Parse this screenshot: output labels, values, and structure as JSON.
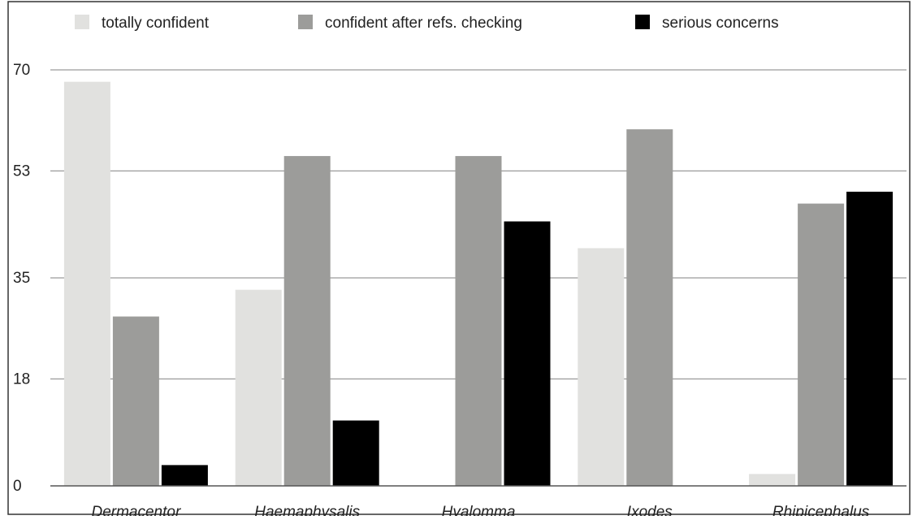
{
  "chart_data": {
    "type": "bar",
    "title": "",
    "xlabel": "",
    "ylabel": "",
    "categories": [
      "Dermacentor",
      "Haemaphysalis",
      "Hyalomma",
      "Ixodes",
      "Rhipicephalus"
    ],
    "series": [
      {
        "name": "totally confident",
        "color": "#e1e1df",
        "values": [
          68,
          33,
          0,
          40,
          2
        ]
      },
      {
        "name": "confident after refs. checking",
        "color": "#9c9c9a",
        "values": [
          28.5,
          55.5,
          55.5,
          60,
          47.5
        ]
      },
      {
        "name": "serious concerns",
        "color": "#000000",
        "values": [
          3.5,
          11,
          44.5,
          0,
          49.5
        ]
      }
    ],
    "yticks": [
      0,
      18,
      35,
      53,
      70
    ],
    "ylim": [
      0,
      70
    ],
    "grid": true,
    "legend_position": "top"
  }
}
